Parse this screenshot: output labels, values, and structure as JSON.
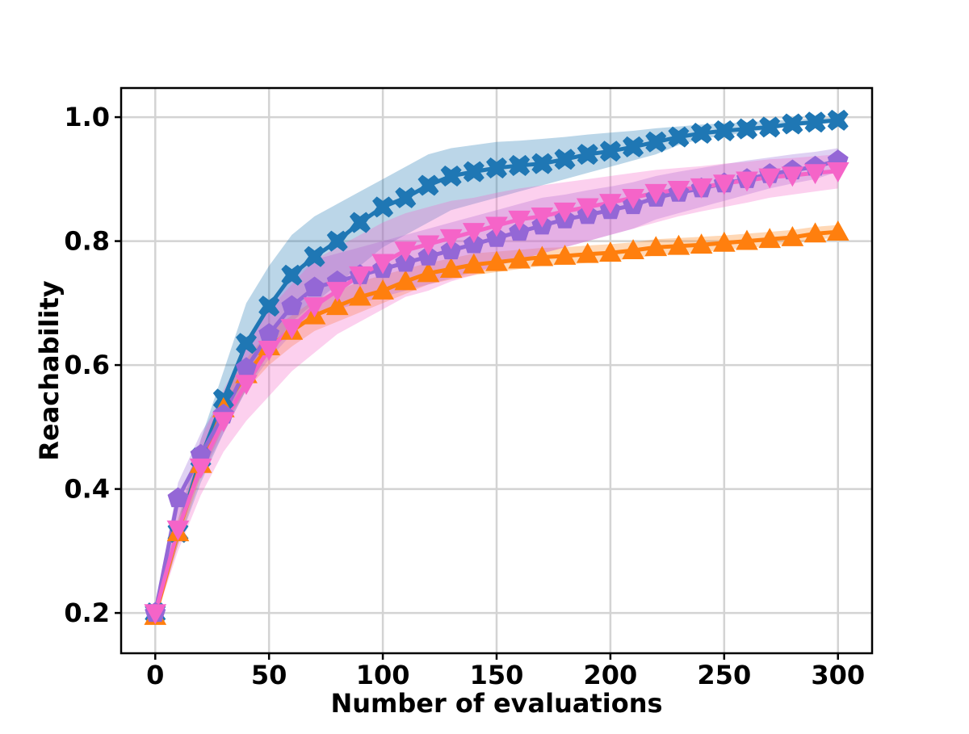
{
  "chart_data": {
    "type": "line",
    "title": "",
    "xlabel": "Number of evaluations",
    "ylabel": "Reachability",
    "xlim": [
      -15,
      315
    ],
    "ylim": [
      0.135,
      1.047
    ],
    "xticks": [
      0,
      50,
      100,
      150,
      200,
      250,
      300
    ],
    "xtick_labels": [
      "0",
      "50",
      "100",
      "150",
      "200",
      "250",
      "300"
    ],
    "yticks": [
      0.2,
      0.4,
      0.6,
      0.8,
      1.0
    ],
    "ytick_labels": [
      "0.2",
      "0.4",
      "0.6",
      "0.8",
      "1.0"
    ],
    "grid": true,
    "legend": "none",
    "x": [
      0,
      10,
      20,
      30,
      40,
      50,
      60,
      70,
      80,
      90,
      100,
      110,
      120,
      130,
      140,
      150,
      160,
      170,
      180,
      190,
      200,
      210,
      220,
      230,
      240,
      250,
      260,
      270,
      280,
      290,
      300
    ],
    "series": [
      {
        "color": "#1f77b4",
        "marker": "X",
        "values": [
          0.2,
          0.33,
          0.45,
          0.545,
          0.635,
          0.695,
          0.745,
          0.775,
          0.8,
          0.83,
          0.855,
          0.87,
          0.89,
          0.905,
          0.912,
          0.918,
          0.922,
          0.925,
          0.932,
          0.94,
          0.945,
          0.952,
          0.96,
          0.968,
          0.974,
          0.978,
          0.981,
          0.984,
          0.989,
          0.992,
          0.995
        ],
        "lower": [
          0.19,
          0.31,
          0.41,
          0.49,
          0.56,
          0.62,
          0.67,
          0.7,
          0.73,
          0.76,
          0.79,
          0.81,
          0.83,
          0.85,
          0.86,
          0.87,
          0.88,
          0.89,
          0.9,
          0.91,
          0.92,
          0.93,
          0.94,
          0.955,
          0.965,
          0.97,
          0.975,
          0.98,
          0.985,
          0.988,
          0.992
        ],
        "upper": [
          0.21,
          0.35,
          0.48,
          0.59,
          0.7,
          0.76,
          0.81,
          0.84,
          0.86,
          0.88,
          0.9,
          0.92,
          0.94,
          0.95,
          0.955,
          0.96,
          0.962,
          0.965,
          0.968,
          0.972,
          0.975,
          0.978,
          0.982,
          0.985,
          0.988,
          0.99,
          0.992,
          0.994,
          0.996,
          0.998,
          0.999
        ]
      },
      {
        "color": "#ff7f0e",
        "marker": "^",
        "values": [
          0.195,
          0.33,
          0.44,
          0.53,
          0.585,
          0.63,
          0.655,
          0.68,
          0.695,
          0.71,
          0.72,
          0.735,
          0.748,
          0.755,
          0.762,
          0.766,
          0.77,
          0.774,
          0.776,
          0.779,
          0.781,
          0.785,
          0.79,
          0.792,
          0.794,
          0.797,
          0.8,
          0.803,
          0.806,
          0.812,
          0.815
        ],
        "lower": [
          0.185,
          0.31,
          0.42,
          0.5,
          0.56,
          0.6,
          0.63,
          0.655,
          0.67,
          0.685,
          0.7,
          0.715,
          0.73,
          0.738,
          0.745,
          0.75,
          0.755,
          0.76,
          0.762,
          0.765,
          0.768,
          0.772,
          0.777,
          0.78,
          0.782,
          0.786,
          0.789,
          0.792,
          0.796,
          0.802,
          0.806
        ],
        "upper": [
          0.205,
          0.35,
          0.46,
          0.555,
          0.61,
          0.655,
          0.68,
          0.705,
          0.72,
          0.735,
          0.745,
          0.755,
          0.765,
          0.772,
          0.78,
          0.783,
          0.786,
          0.789,
          0.79,
          0.793,
          0.795,
          0.798,
          0.803,
          0.805,
          0.807,
          0.809,
          0.812,
          0.815,
          0.818,
          0.823,
          0.826
        ]
      },
      {
        "color": "#9467d6",
        "marker": "p",
        "values": [
          0.2,
          0.385,
          0.455,
          0.52,
          0.595,
          0.65,
          0.695,
          0.725,
          0.735,
          0.745,
          0.755,
          0.765,
          0.775,
          0.785,
          0.795,
          0.805,
          0.815,
          0.825,
          0.835,
          0.842,
          0.85,
          0.858,
          0.87,
          0.878,
          0.885,
          0.893,
          0.9,
          0.908,
          0.914,
          0.92,
          0.93
        ],
        "lower": [
          0.19,
          0.35,
          0.42,
          0.49,
          0.56,
          0.61,
          0.65,
          0.68,
          0.69,
          0.7,
          0.71,
          0.72,
          0.73,
          0.74,
          0.75,
          0.76,
          0.77,
          0.78,
          0.79,
          0.8,
          0.81,
          0.82,
          0.835,
          0.845,
          0.855,
          0.865,
          0.875,
          0.885,
          0.893,
          0.9,
          0.912
        ],
        "upper": [
          0.21,
          0.41,
          0.49,
          0.55,
          0.63,
          0.69,
          0.74,
          0.77,
          0.78,
          0.79,
          0.8,
          0.81,
          0.82,
          0.83,
          0.84,
          0.85,
          0.86,
          0.87,
          0.875,
          0.882,
          0.888,
          0.895,
          0.905,
          0.912,
          0.918,
          0.924,
          0.93,
          0.935,
          0.94,
          0.944,
          0.95
        ]
      },
      {
        "color": "#f564c8",
        "marker": "v",
        "values": [
          0.2,
          0.335,
          0.435,
          0.51,
          0.57,
          0.625,
          0.66,
          0.695,
          0.72,
          0.745,
          0.765,
          0.785,
          0.795,
          0.805,
          0.815,
          0.825,
          0.835,
          0.84,
          0.848,
          0.855,
          0.862,
          0.87,
          0.878,
          0.883,
          0.887,
          0.893,
          0.898,
          0.903,
          0.906,
          0.91,
          0.913
        ],
        "lower": [
          0.19,
          0.3,
          0.39,
          0.46,
          0.51,
          0.55,
          0.59,
          0.62,
          0.65,
          0.67,
          0.69,
          0.71,
          0.72,
          0.735,
          0.745,
          0.76,
          0.77,
          0.78,
          0.79,
          0.8,
          0.81,
          0.82,
          0.83,
          0.84,
          0.848,
          0.855,
          0.862,
          0.87,
          0.875,
          0.88,
          0.885
        ],
        "upper": [
          0.21,
          0.37,
          0.48,
          0.56,
          0.63,
          0.69,
          0.73,
          0.77,
          0.79,
          0.81,
          0.83,
          0.845,
          0.855,
          0.865,
          0.87,
          0.878,
          0.885,
          0.89,
          0.895,
          0.9,
          0.905,
          0.91,
          0.915,
          0.918,
          0.921,
          0.925,
          0.928,
          0.932,
          0.934,
          0.937,
          0.94
        ]
      }
    ]
  }
}
